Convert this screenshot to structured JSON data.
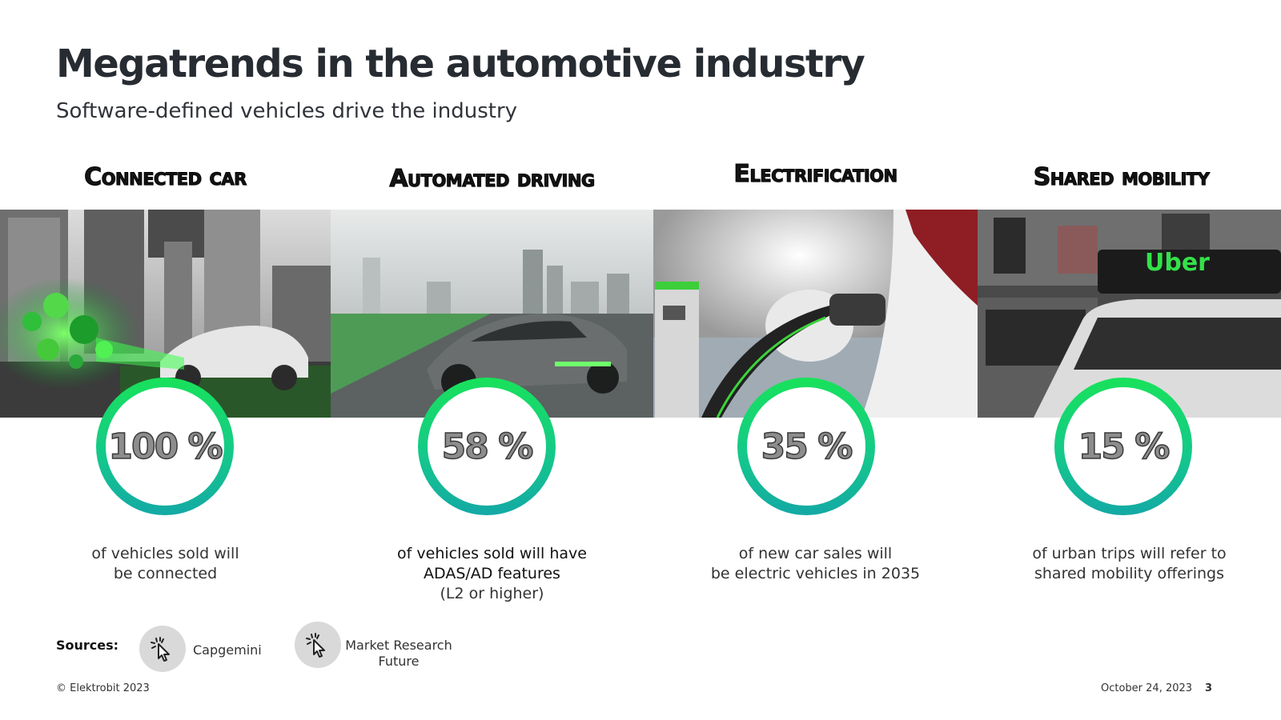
{
  "title": "Megatrends in the automotive industry",
  "subtitle": "Software-defined vehicles drive the industry",
  "trends": [
    {
      "heading": "Connected car",
      "value": "100 %",
      "percent": 100,
      "lines": [
        "of vehicles sold will",
        "be connected"
      ]
    },
    {
      "heading": "Automated driving",
      "value": "58 %",
      "percent": 58,
      "lines": [
        "of vehicles sold will have",
        "ADAS/AD features",
        "(L2 or higher)"
      ]
    },
    {
      "heading": "Electrification",
      "value": "35 %",
      "percent": 35,
      "lines": [
        "of new car sales will",
        "be electric vehicles in 2035"
      ]
    },
    {
      "heading": "Shared mobility",
      "value": "15 %",
      "percent": 15,
      "lines": [
        "of urban trips will refer to",
        "shared mobility offerings"
      ],
      "taxi_sign": "Uber"
    }
  ],
  "sources": {
    "label": "Sources:",
    "items": [
      {
        "name": "Capgemini",
        "icon": "click-cursor-icon"
      },
      {
        "name_lines": [
          "Market Research",
          "Future"
        ],
        "icon": "click-cursor-icon"
      }
    ]
  },
  "footer": {
    "copyright": "© Elektrobit 2023",
    "date": "October 24, 2023",
    "page": "3"
  },
  "colors": {
    "accent_green": "#18e25a",
    "accent_teal": "#13a9a5",
    "title": "#272c33"
  }
}
